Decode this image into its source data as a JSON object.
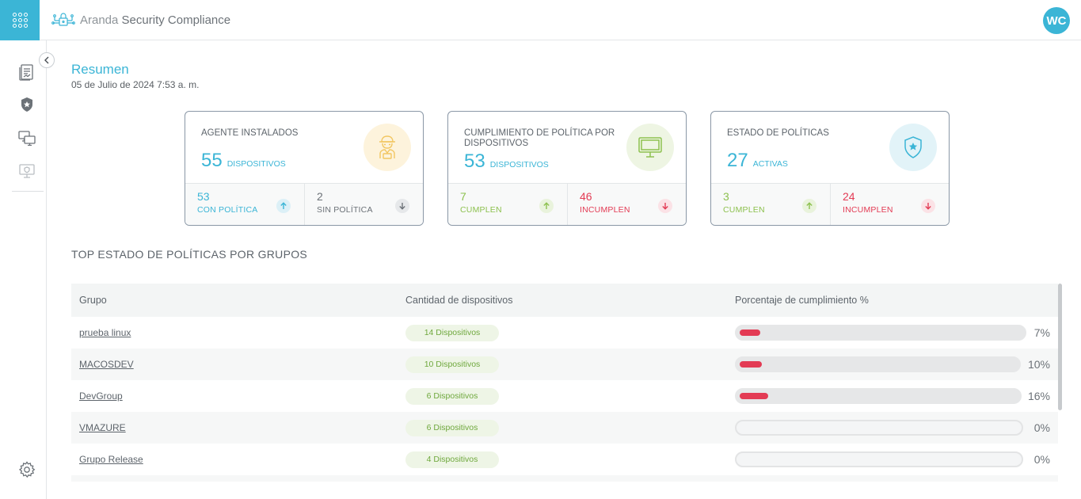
{
  "header": {
    "brand_light": "Aranda",
    "brand_bold": "Security Compliance",
    "avatar_initials": "WC"
  },
  "sidebar": {
    "items": [
      {
        "icon": "report-icon"
      },
      {
        "icon": "shield-star-icon"
      },
      {
        "icon": "devices-icon"
      },
      {
        "icon": "monitor-shield-icon"
      }
    ],
    "settings_icon": "gear-icon"
  },
  "page": {
    "title": "Resumen",
    "date": "05 de Julio de 2024 7:53 a. m."
  },
  "cards": [
    {
      "title": "AGENTE INSTALADOS",
      "value": "55",
      "unit": "DISPOSITIVOS",
      "icon": "agent-icon",
      "left": {
        "value": "53",
        "label": "CON POLÍTICA"
      },
      "right": {
        "value": "2",
        "label": "SIN POLÍTICA"
      }
    },
    {
      "title": "CUMPLIMIENTO DE POLÍTICA POR DISPOSITIVOS",
      "value": "53",
      "unit": "DISPOSITIVOS",
      "icon": "monitor-icon",
      "left": {
        "value": "7",
        "label": "CUMPLEN"
      },
      "right": {
        "value": "46",
        "label": "INCUMPLEN"
      }
    },
    {
      "title": "ESTADO DE POLÍTICAS",
      "value": "27",
      "unit": "ACTIVAS",
      "icon": "shield-star-icon",
      "left": {
        "value": "3",
        "label": "CUMPLEN"
      },
      "right": {
        "value": "24",
        "label": "INCUMPLEN"
      }
    }
  ],
  "table": {
    "section_title": "TOP ESTADO DE POLÍTICAS POR GRUPOS",
    "headers": [
      "Grupo",
      "Cantidad de dispositivos",
      "Porcentaje de cumplimiento %"
    ],
    "rows": [
      {
        "group": "prueba linux",
        "devices": "14 Dispositivos",
        "percent_label": "7%",
        "percent": 7
      },
      {
        "group": "MACOSDEV",
        "devices": "10 Dispositivos",
        "percent_label": "10%",
        "percent": 10
      },
      {
        "group": "DevGroup",
        "devices": "6 Dispositivos",
        "percent_label": "16%",
        "percent": 16
      },
      {
        "group": "VMAZURE",
        "devices": "6 Dispositivos",
        "percent_label": "0%",
        "percent": 0
      },
      {
        "group": "Grupo Release",
        "devices": "4 Dispositivos",
        "percent_label": "0%",
        "percent": 0
      }
    ]
  },
  "colors": {
    "accent": "#3bb5d6",
    "green": "#8dc14f",
    "red": "#e33b54"
  }
}
